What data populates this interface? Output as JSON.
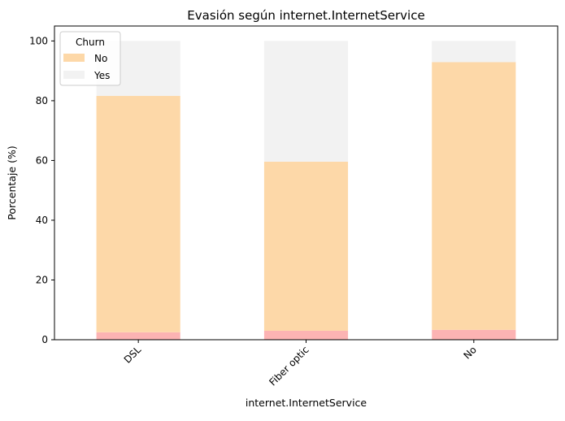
{
  "chart_data": {
    "type": "bar",
    "stacked": true,
    "title": "Evasión según internet.InternetService",
    "xlabel": "internet.InternetService",
    "ylabel": "Porcentaje (%)",
    "categories": [
      "DSL",
      "Fiber optic",
      "No"
    ],
    "series": [
      {
        "name": "",
        "values": [
          2.5,
          3.0,
          3.3
        ],
        "color": "#fcb3b3"
      },
      {
        "name": "No",
        "values": [
          79.1,
          56.6,
          89.6
        ],
        "color": "#fdd8a8"
      },
      {
        "name": "Yes",
        "values": [
          18.4,
          40.4,
          7.1
        ],
        "color": "#f2f2f2"
      }
    ],
    "ylim": [
      0,
      105
    ],
    "yticks": [
      0,
      20,
      40,
      60,
      80,
      100
    ],
    "legend": {
      "title": "Churn",
      "placement": "top-left"
    },
    "grid": false
  }
}
